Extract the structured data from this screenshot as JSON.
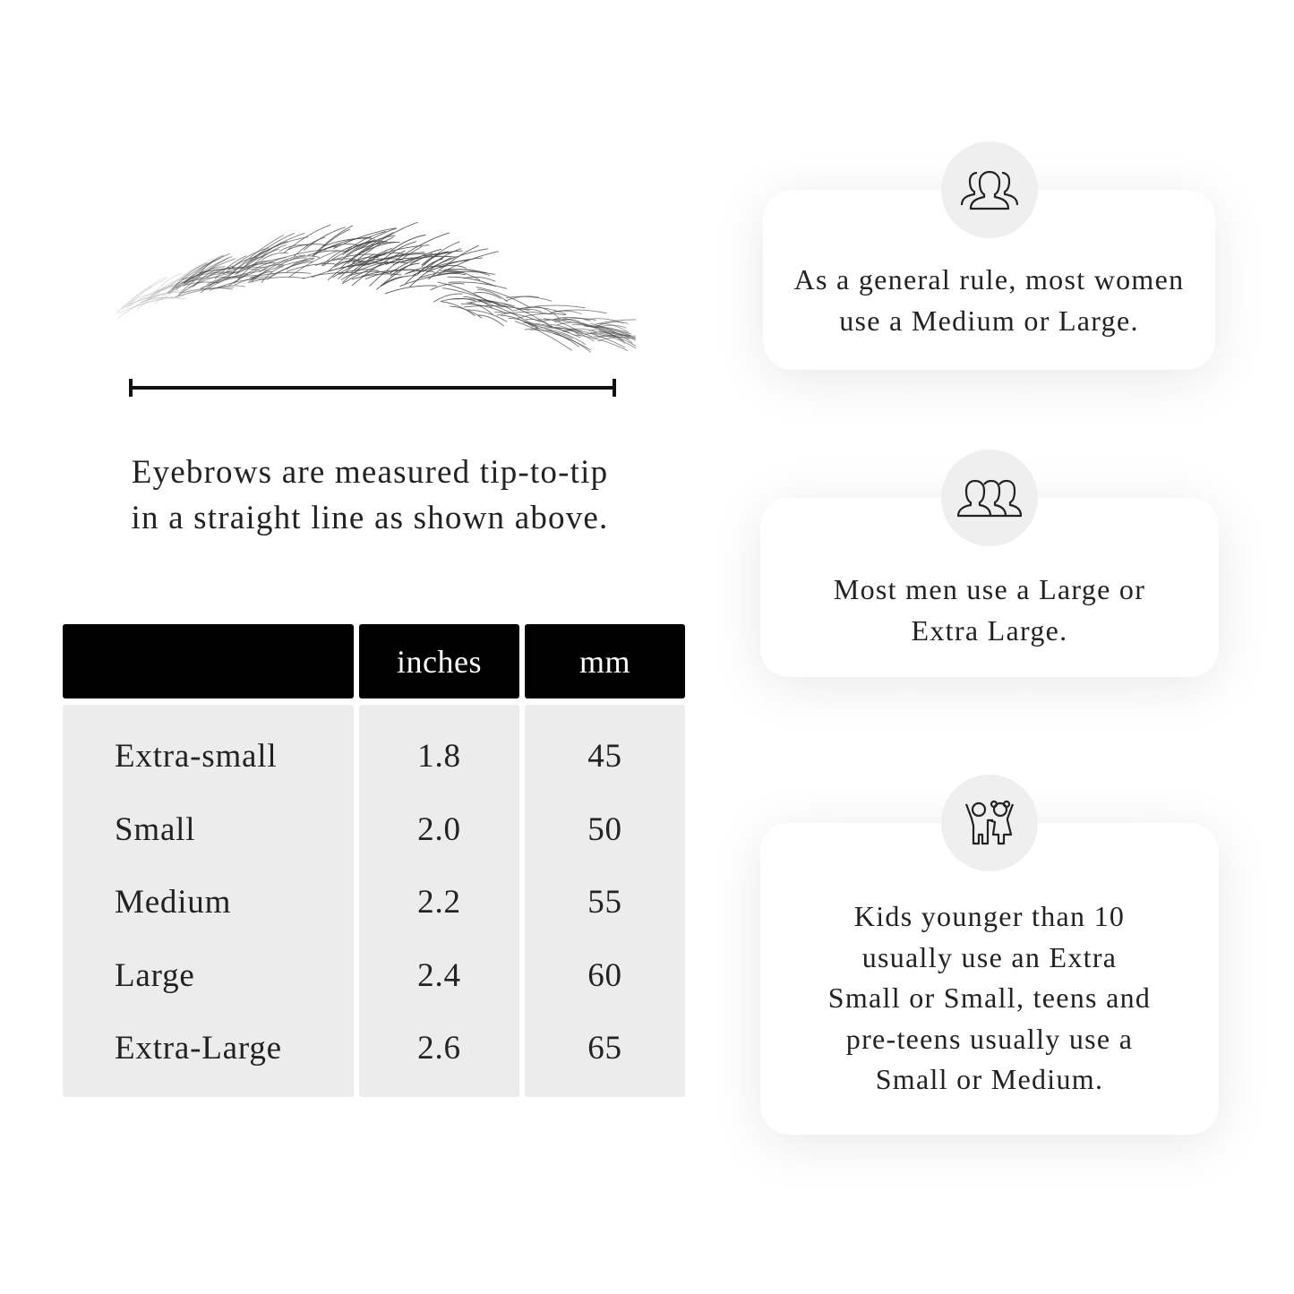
{
  "measure": {
    "caption_line1": "Eyebrows are measured tip-to-tip",
    "caption_line2": "in a straight line as shown above."
  },
  "size_table": {
    "columns": [
      "",
      "inches",
      "mm"
    ],
    "rows": [
      {
        "size": "Extra-small",
        "inches": "1.8",
        "mm": "45"
      },
      {
        "size": "Small",
        "inches": "2.0",
        "mm": "50"
      },
      {
        "size": "Medium",
        "inches": "2.2",
        "mm": "55"
      },
      {
        "size": "Large",
        "inches": "2.4",
        "mm": "60"
      },
      {
        "size": "Extra-Large",
        "inches": "2.6",
        "mm": "65"
      }
    ]
  },
  "cards": [
    {
      "icon": "women-group-icon",
      "lines": [
        "As a general rule, most women",
        "use a Medium or Large."
      ]
    },
    {
      "icon": "men-group-icon",
      "lines": [
        "Most men use a Large or",
        "Extra Large."
      ]
    },
    {
      "icon": "kids-icon",
      "lines": [
        "Kids younger than 10",
        "usually use an Extra",
        "Small or Small, teens and",
        "pre-teens usually use a",
        "Small or Medium."
      ]
    }
  ],
  "colors": {
    "header_bg": "#000000",
    "row_bg": "#ececec",
    "icon_circle": "#efefef"
  }
}
